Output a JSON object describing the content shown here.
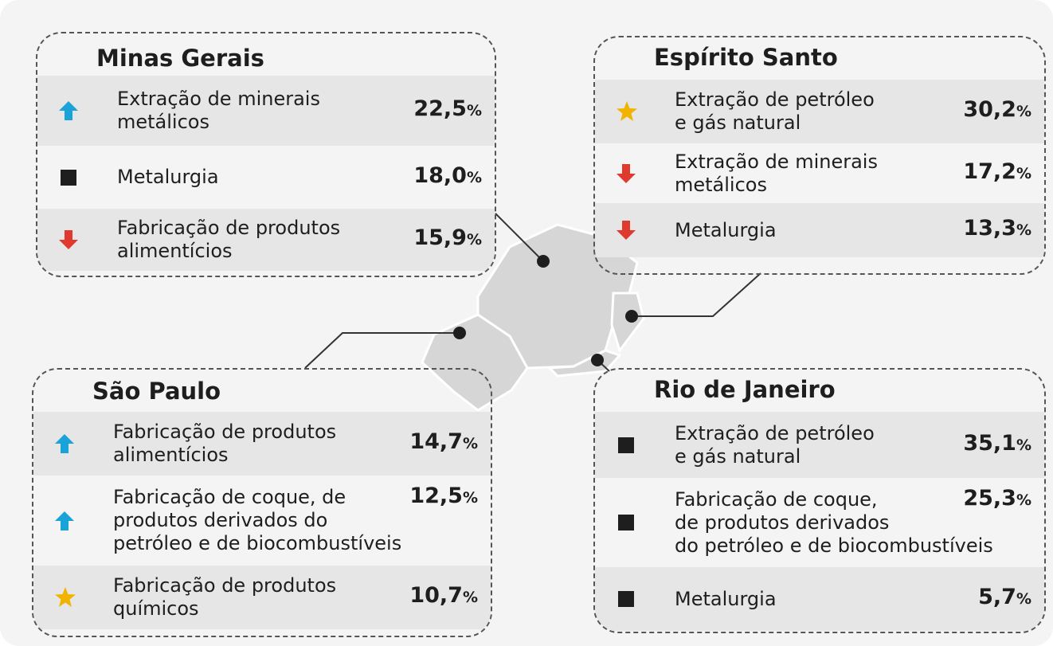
{
  "panels": [
    {
      "title": "Minas Gerais",
      "rows": [
        {
          "icon": "up",
          "label": [
            "Extração de minerais",
            "metálicos"
          ],
          "value": "22,5",
          "unit": "%"
        },
        {
          "icon": "square",
          "label": [
            "Metalurgia"
          ],
          "value": "18,0",
          "unit": "%"
        },
        {
          "icon": "down",
          "label": [
            "Fabricação de produtos",
            "alimentícios"
          ],
          "value": "15,9",
          "unit": "%"
        }
      ]
    },
    {
      "title": "Espírito Santo",
      "rows": [
        {
          "icon": "star",
          "label": [
            "Extração de petróleo",
            "e gás natural"
          ],
          "value": "30,2",
          "unit": "%"
        },
        {
          "icon": "down",
          "label": [
            "Extração de minerais",
            "metálicos"
          ],
          "value": "17,2",
          "unit": "%"
        },
        {
          "icon": "down",
          "label": [
            "Metalurgia"
          ],
          "value": "13,3",
          "unit": "%"
        }
      ]
    },
    {
      "title": "São Paulo",
      "rows": [
        {
          "icon": "up",
          "label": [
            "Fabricação de produtos",
            "alimentícios"
          ],
          "value": "14,7",
          "unit": "%"
        },
        {
          "icon": "up",
          "label": [
            "Fabricação de coque, de",
            "produtos derivados do",
            "petróleo e de biocombustíveis"
          ],
          "value": "12,5",
          "unit": "%"
        },
        {
          "icon": "star",
          "label": [
            "Fabricação de produtos",
            "químicos"
          ],
          "value": "10,7",
          "unit": "%"
        }
      ]
    },
    {
      "title": "Rio de Janeiro",
      "rows": [
        {
          "icon": "square",
          "label": [
            "Extração de petróleo",
            "e gás natural"
          ],
          "value": "35,1",
          "unit": "%"
        },
        {
          "icon": "square",
          "label": [
            "Fabricação de coque,",
            "de produtos derivados",
            "do petróleo e de biocombustíveis"
          ],
          "value": "25,3",
          "unit": "%"
        },
        {
          "icon": "square",
          "label": [
            "Metalurgia"
          ],
          "value": "5,7",
          "unit": "%"
        }
      ]
    }
  ]
}
